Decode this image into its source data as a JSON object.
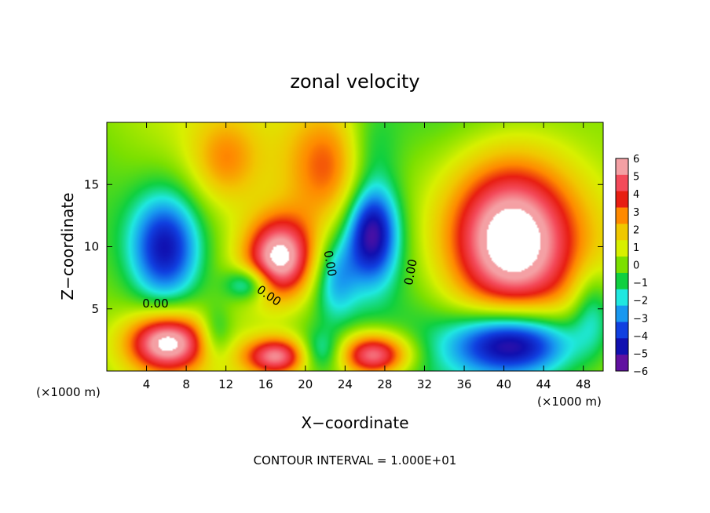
{
  "chart_data": {
    "type": "heatmap",
    "title": "zonal velocity",
    "xlabel": "X−coordinate",
    "ylabel": "Z−coordinate",
    "x_unit": "(×1000 m)",
    "xlim": [
      0,
      50
    ],
    "ylim": [
      0,
      20
    ],
    "x_ticks": [
      4,
      8,
      12,
      16,
      20,
      24,
      28,
      32,
      36,
      40,
      44,
      48
    ],
    "x_tick_labels": [
      "4",
      "8",
      "12",
      "16",
      "20",
      "24",
      "28",
      "32",
      "36",
      "40",
      "44",
      "48"
    ],
    "y_ticks": [
      5,
      10,
      15
    ],
    "y_tick_labels": [
      "5",
      "10",
      "15"
    ],
    "colorbar": {
      "levels": [
        6,
        5,
        4,
        3,
        2,
        1,
        0,
        -1,
        -2,
        -3,
        -4,
        -5,
        -6
      ],
      "labels": [
        "6",
        "5",
        "4",
        "3",
        "2",
        "1",
        "0",
        "−1",
        "−2",
        "−3",
        "−4",
        "−5",
        "−6"
      ],
      "colors": [
        "#f4a0a4",
        "#f44a5a",
        "#e81e12",
        "#ff8a00",
        "#f0c800",
        "#d8f000",
        "#7ce000",
        "#10d040",
        "#20e8e0",
        "#1898f0",
        "#1040e0",
        "#1010b0",
        "#6010a0"
      ]
    },
    "contour_labels": [
      {
        "text": "0.00",
        "x": 4.9,
        "y": 5.1,
        "angle": 0
      },
      {
        "text": "0.00",
        "x": 22.1,
        "y": 8.6,
        "angle": 80
      },
      {
        "text": "0.00",
        "x": 16.1,
        "y": 5.8,
        "angle": 35
      },
      {
        "text": "0.00",
        "x": 31.0,
        "y": 7.9,
        "angle": -80
      }
    ],
    "features": [
      {
        "kind": "peak",
        "sign": "neg",
        "x": 5.9,
        "y": 9.9,
        "a": 5.0,
        "sx": 3.2,
        "sy": 4.0
      },
      {
        "kind": "peak",
        "sign": "neg",
        "x": 26.7,
        "y": 11.2,
        "a": 5.9,
        "sx": 2.4,
        "sy": 3.6
      },
      {
        "kind": "peak",
        "sign": "pos",
        "x": 17.4,
        "y": 9.1,
        "a": 6.8,
        "sx": 3.2,
        "sy": 3.0
      },
      {
        "kind": "peak",
        "sign": "pos",
        "x": 40.7,
        "y": 10.5,
        "a": 7.5,
        "sx": 6.0,
        "sy": 6.0
      },
      {
        "kind": "peak",
        "sign": "pos",
        "x": 6.1,
        "y": 2.3,
        "a": 6.5,
        "sx": 3.6,
        "sy": 2.1
      },
      {
        "kind": "peak",
        "sign": "pos",
        "x": 17.1,
        "y": 1.2,
        "a": 5.5,
        "sx": 3.0,
        "sy": 1.4
      },
      {
        "kind": "peak",
        "sign": "pos",
        "x": 26.9,
        "y": 1.3,
        "a": 6.2,
        "sx": 3.2,
        "sy": 1.6
      },
      {
        "kind": "peak",
        "sign": "neg",
        "x": 40.9,
        "y": 2.3,
        "a": 6.4,
        "sx": 5.5,
        "sy": 2.4
      },
      {
        "kind": "peak",
        "sign": "pos",
        "x": 22.4,
        "y": 16.5,
        "a": 3.2,
        "sx": 4.0,
        "sy": 4.5
      },
      {
        "kind": "peak",
        "sign": "pos",
        "x": 12.0,
        "y": 17.0,
        "a": 2.2,
        "sx": 3.0,
        "sy": 3.0
      },
      {
        "kind": "peak",
        "sign": "neg",
        "x": 26.5,
        "y": 18.0,
        "a": 1.5,
        "sx": 2.5,
        "sy": 3.0
      },
      {
        "kind": "peak",
        "sign": "neg",
        "x": 14.2,
        "y": 7.0,
        "a": 3.2,
        "sx": 2.0,
        "sy": 1.2
      },
      {
        "kind": "peak",
        "sign": "neg",
        "x": 23.0,
        "y": 7.5,
        "a": 2.5,
        "sx": 2.0,
        "sy": 3.0
      },
      {
        "kind": "peak",
        "sign": "neg",
        "x": 11.0,
        "y": 3.0,
        "a": 2.0,
        "sx": 1.5,
        "sy": 2.0
      },
      {
        "kind": "peak",
        "sign": "neg",
        "x": 21.5,
        "y": 1.5,
        "a": 2.5,
        "sx": 2.0,
        "sy": 1.5
      },
      {
        "kind": "peak",
        "sign": "neg",
        "x": 49.0,
        "y": 5.0,
        "a": 2.5,
        "sx": 2.0,
        "sy": 3.0
      }
    ]
  },
  "footer": {
    "contour_interval": "CONTOUR INTERVAL = 1.000E+01"
  }
}
